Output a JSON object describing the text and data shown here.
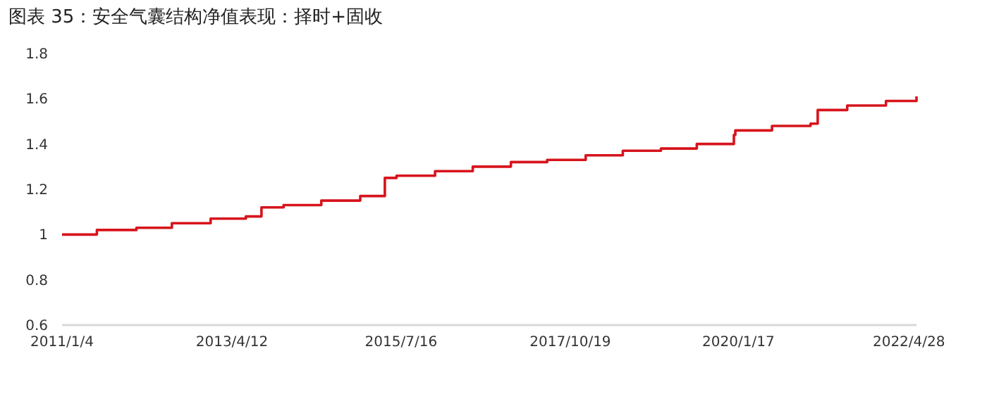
{
  "chart_data": {
    "type": "step",
    "title": "图表 35：安全气囊结构净值表现：择时+固收",
    "x": [
      "2011-01-04",
      "2011-06-23",
      "2012-01-02",
      "2012-06-23",
      "2012-12-29",
      "2013-06-19",
      "2013-09-03",
      "2013-12-20",
      "2014-06-22",
      "2014-12-29",
      "2015-04-28",
      "2015-06-24",
      "2015-12-29",
      "2016-06-30",
      "2017-01-02",
      "2017-06-28",
      "2018-01-02",
      "2018-07-02",
      "2019-01-04",
      "2019-06-28",
      "2019-12-26",
      "2020-01-02",
      "2020-06-29",
      "2021-01-03",
      "2021-02-07",
      "2021-07-01",
      "2022-01-06",
      "2022-06-04"
    ],
    "series": [
      {
        "color": "#d7141c",
        "values": [
          1.0,
          1.02,
          1.03,
          1.05,
          1.07,
          1.08,
          1.12,
          1.13,
          1.15,
          1.17,
          1.25,
          1.26,
          1.28,
          1.3,
          1.32,
          1.33,
          1.35,
          1.37,
          1.38,
          1.4,
          1.44,
          1.46,
          1.48,
          1.49,
          1.55,
          1.57,
          1.59,
          1.61
        ]
      }
    ],
    "xlim": [
      "2011-01-04",
      "2022-06-04"
    ],
    "xticks": [
      {
        "value": "2011-01-04",
        "label": "2011/1/4"
      },
      {
        "value": "2013-04-12",
        "label": "2013/4/12"
      },
      {
        "value": "2015-07-16",
        "label": "2015/7/16"
      },
      {
        "value": "2017-10-19",
        "label": "2017/10/19"
      },
      {
        "value": "2020-01-17",
        "label": "2020/1/17"
      },
      {
        "value": "2022-04-28",
        "label": "2022/4/28"
      }
    ],
    "ylim": [
      0.6,
      1.8
    ],
    "yticks": [
      0.6,
      0.8,
      1,
      1.2,
      1.4,
      1.6,
      1.8
    ],
    "grid": false
  }
}
